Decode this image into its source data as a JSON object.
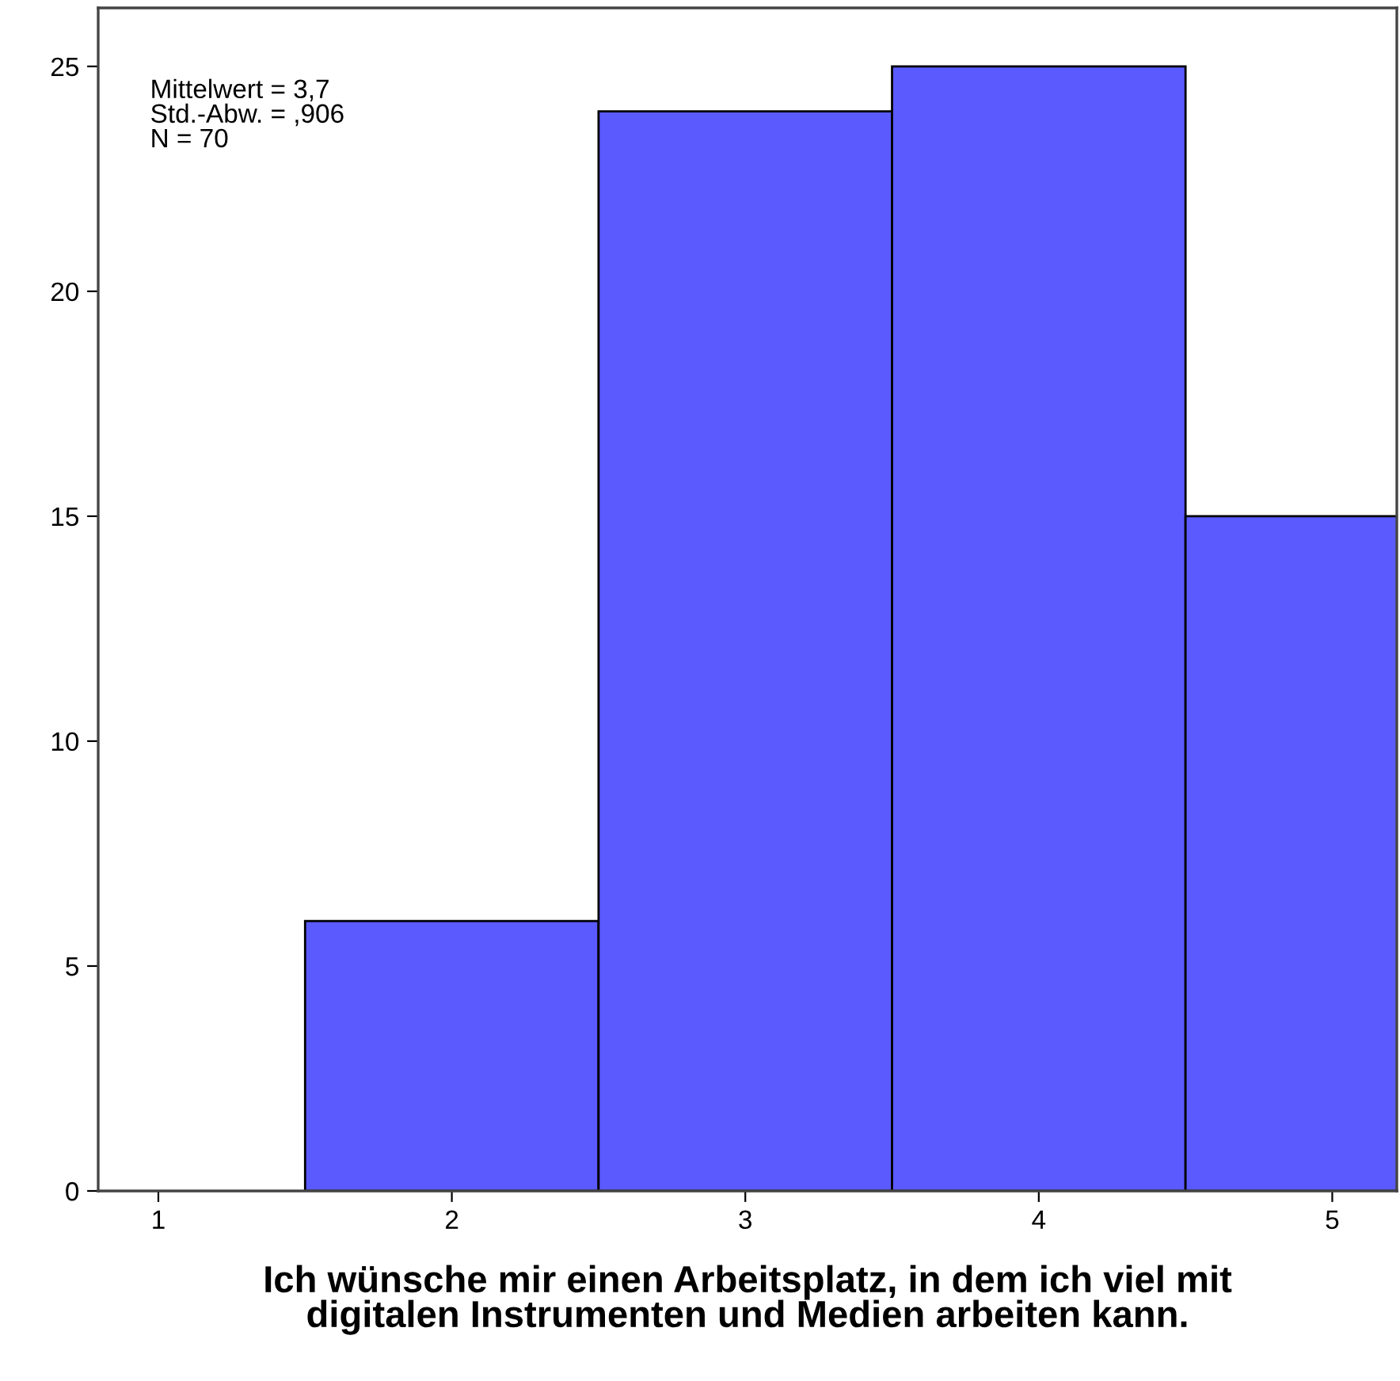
{
  "chart_data": {
    "type": "histogram",
    "bins": [
      1.5,
      2.5,
      3.5,
      4.5,
      5.5
    ],
    "values": [
      6,
      24,
      25,
      15
    ],
    "color": "#5a5aff",
    "xlim": [
      0.795,
      5.22
    ],
    "xticks": [
      1,
      2,
      3,
      4,
      5
    ],
    "ylim": [
      0,
      26.3
    ],
    "yticks": [
      0,
      5,
      10,
      15,
      20,
      25
    ],
    "xlabel": "Ich wünsche mir einen Arbeitsplatz, in dem ich viel mit\ndigitalen Instrumenten und Medien arbeiten kann.",
    "annotations": [
      "Mittelwert = 3,7\nStd.-Abw. = ,906\nN = 70"
    ],
    "grid": false,
    "legend": false
  }
}
